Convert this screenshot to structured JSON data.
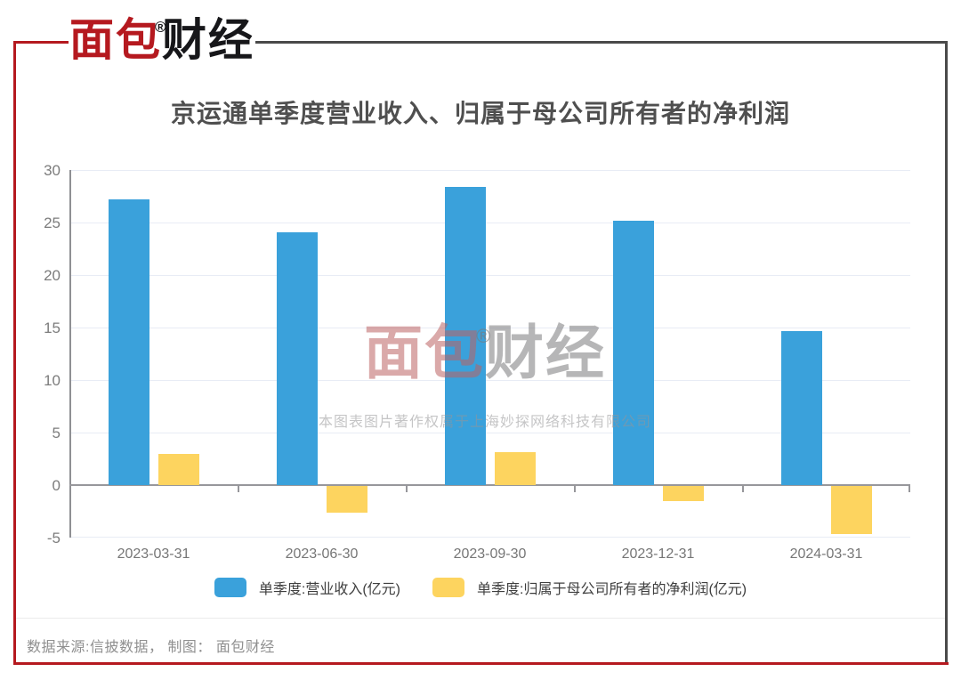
{
  "logo": {
    "text_red": "面包",
    "text_black": "财经",
    "registered": "®"
  },
  "title": "京运通单季度营业收入、归属于母公司所有者的净利润",
  "watermark": {
    "text_red": "面包",
    "text_black": "财经",
    "registered": "®",
    "copyright": "本图表图片著作权属于上海妙探网络科技有限公司"
  },
  "footer": {
    "text": "数据来源:信披数据， 制图： 面包财经"
  },
  "colors": {
    "frame_red": "#B5191F",
    "frame_dark": "#4A4A4A",
    "revenue_bar": "#3AA1DB",
    "profit_bar": "#FDD45F"
  },
  "chart_data": {
    "type": "bar",
    "title": "京运通单季度营业收入、归属于母公司所有者的净利润",
    "categories": [
      "2023-03-31",
      "2023-06-30",
      "2023-09-30",
      "2023-12-31",
      "2024-03-31"
    ],
    "series": [
      {
        "name": "单季度:营业收入(亿元)",
        "color": "#3AA1DB",
        "values": [
          27.2,
          24.1,
          28.4,
          25.2,
          14.7
        ]
      },
      {
        "name": "单季度:归属于母公司所有者的净利润(亿元)",
        "color": "#FDD45F",
        "values": [
          3.0,
          -2.5,
          3.1,
          -1.4,
          -4.6
        ]
      }
    ],
    "xlabel": "",
    "ylabel": "",
    "ylim": [
      -5,
      30
    ],
    "yticks": [
      30,
      25,
      20,
      15,
      10,
      5,
      0,
      -5
    ],
    "grid": true,
    "legend_position": "bottom"
  }
}
